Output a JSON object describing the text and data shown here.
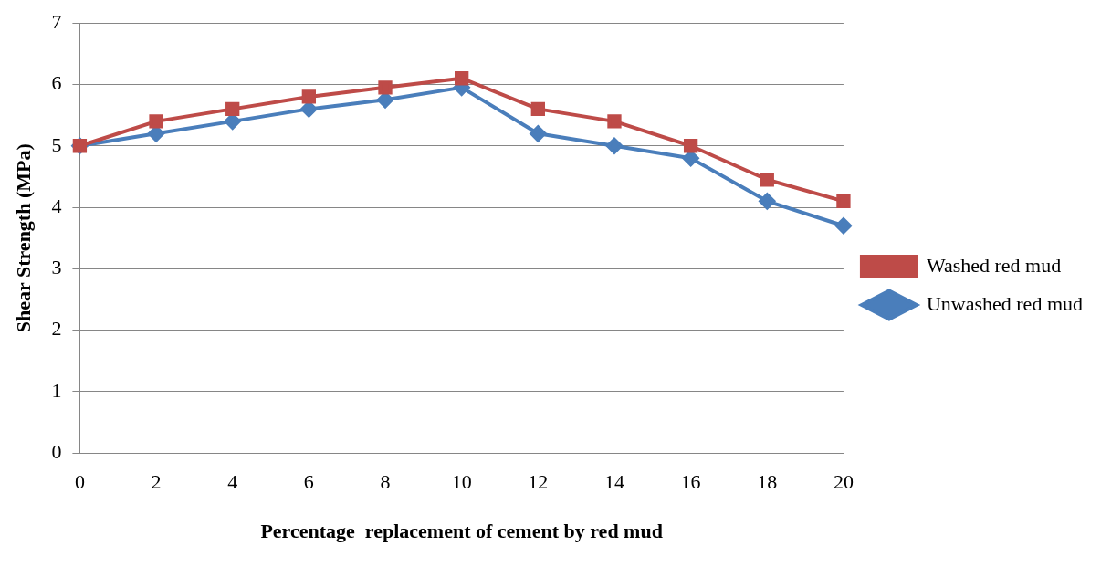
{
  "chart_data": {
    "type": "line",
    "xlabel": "Percentage  replacement of cement by red mud",
    "ylabel": "Shear Strength (MPa)",
    "categories": [
      "0",
      "2",
      "4",
      "6",
      "8",
      "10",
      "12",
      "14",
      "16",
      "18",
      "20"
    ],
    "series": [
      {
        "name": "Unwashed red mud",
        "color": "#4a7ebb",
        "marker": "diamond",
        "values": [
          5,
          5.2,
          5.4,
          5.6,
          5.75,
          5.95,
          5.2,
          5,
          4.8,
          4.1,
          3.7
        ]
      },
      {
        "name": "Washed red mud",
        "color": "#be4b48",
        "marker": "square",
        "values": [
          5,
          5.4,
          5.6,
          5.8,
          5.95,
          6.1,
          5.6,
          5.4,
          5,
          4.45,
          4.1
        ]
      }
    ],
    "ylim": [
      0,
      7
    ],
    "yticks": [
      0,
      1,
      2,
      3,
      4,
      5,
      6,
      7
    ],
    "grid": "y",
    "legend": "right",
    "line_style": "solid"
  }
}
